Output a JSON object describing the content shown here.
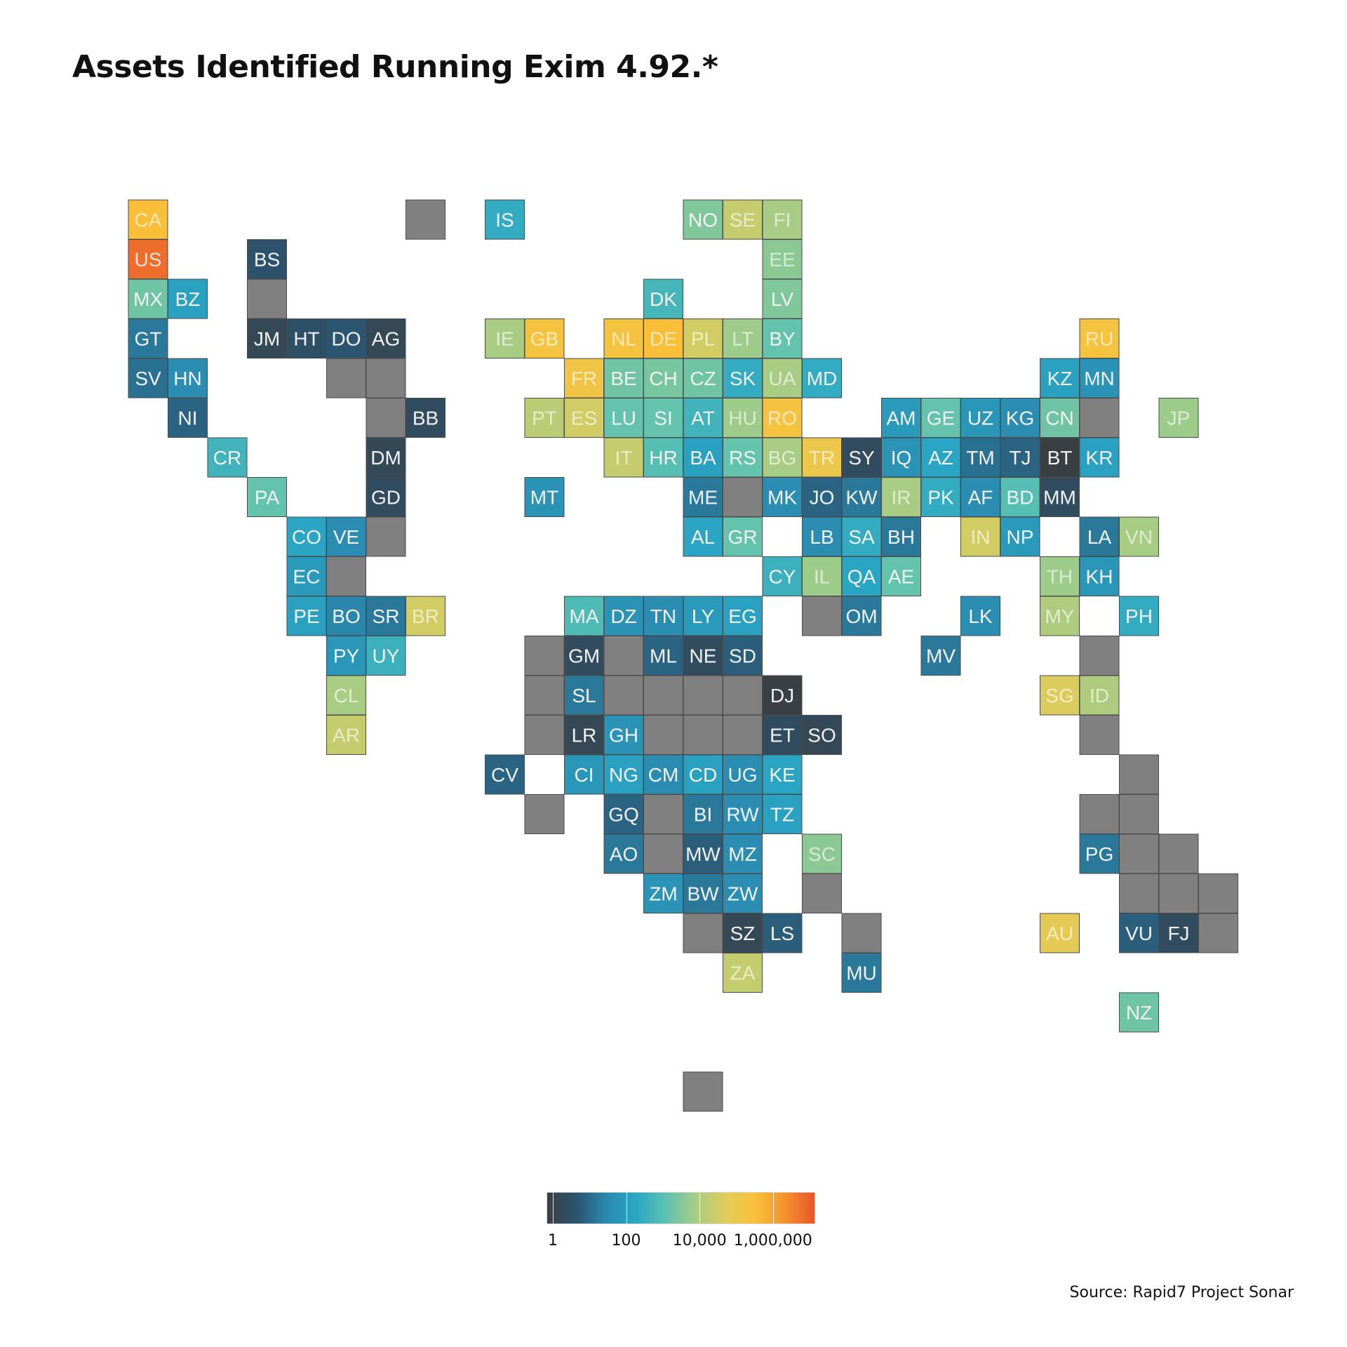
{
  "title": "Assets Identified Running Exim 4.92.*",
  "source": "Source: Rapid7 Project Sonar",
  "colors": {
    "no_data": "#808080",
    "tile_stroke": "#4a4a4a",
    "scale": [
      "#3a3f44",
      "#2b5570",
      "#2a8bb0",
      "#2aa6c4",
      "#5dc2b0",
      "#a7cc84",
      "#e0cc5a",
      "#f9c13a",
      "#f5922e",
      "#e8552a"
    ]
  },
  "legend": {
    "scale": "log10",
    "min": 1,
    "max": 10000000,
    "ticks": [
      {
        "value": 1,
        "label": "1"
      },
      {
        "value": 100,
        "label": "100"
      },
      {
        "value": 10000,
        "label": "10,000"
      },
      {
        "value": 1000000,
        "label": "1,000,000"
      }
    ]
  },
  "tiles": [
    {
      "code": "CA",
      "col": 0,
      "row": 0,
      "value": 300000
    },
    {
      "code": "US",
      "col": 0,
      "row": 1,
      "value": 5000000
    },
    {
      "code": "MX",
      "col": 0,
      "row": 2,
      "value": 2000
    },
    {
      "code": "BZ",
      "col": 1,
      "row": 2,
      "value": 150
    },
    {
      "code": "GT",
      "col": 0,
      "row": 3,
      "value": 20
    },
    {
      "code": "SV",
      "col": 0,
      "row": 4,
      "value": 15
    },
    {
      "code": "HN",
      "col": 1,
      "row": 4,
      "value": 40
    },
    {
      "code": "NI",
      "col": 1,
      "row": 5,
      "value": 10
    },
    {
      "code": "CR",
      "col": 2,
      "row": 6,
      "value": 500
    },
    {
      "code": "PA",
      "col": 3,
      "row": 7,
      "value": 1500
    },
    {
      "code": "BS",
      "col": 3,
      "row": 1,
      "value": 5
    },
    {
      "code": "",
      "col": 3,
      "row": 2,
      "value": null
    },
    {
      "code": "JM",
      "col": 3,
      "row": 3,
      "value": 2
    },
    {
      "code": "HT",
      "col": 4,
      "row": 3,
      "value": 4
    },
    {
      "code": "DO",
      "col": 5,
      "row": 3,
      "value": 6
    },
    {
      "code": "AG",
      "col": 6,
      "row": 3,
      "value": 2
    },
    {
      "code": "",
      "col": 5,
      "row": 4,
      "value": null
    },
    {
      "code": "",
      "col": 6,
      "row": 4,
      "value": null
    },
    {
      "code": "",
      "col": 6,
      "row": 5,
      "value": null
    },
    {
      "code": "BB",
      "col": 7,
      "row": 5,
      "value": 3
    },
    {
      "code": "DM",
      "col": 6,
      "row": 6,
      "value": 2
    },
    {
      "code": "GD",
      "col": 6,
      "row": 7,
      "value": 3
    },
    {
      "code": "",
      "col": 7,
      "row": 0,
      "value": null
    },
    {
      "code": "CO",
      "col": 4,
      "row": 8,
      "value": 200
    },
    {
      "code": "VE",
      "col": 5,
      "row": 8,
      "value": 40
    },
    {
      "code": "",
      "col": 6,
      "row": 8,
      "value": null
    },
    {
      "code": "EC",
      "col": 4,
      "row": 9,
      "value": 100
    },
    {
      "code": "",
      "col": 5,
      "row": 9,
      "value": null
    },
    {
      "code": "PE",
      "col": 4,
      "row": 10,
      "value": 150
    },
    {
      "code": "BO",
      "col": 5,
      "row": 10,
      "value": 30
    },
    {
      "code": "SR",
      "col": 6,
      "row": 10,
      "value": 20
    },
    {
      "code": "BR",
      "col": 7,
      "row": 10,
      "value": 30000
    },
    {
      "code": "PY",
      "col": 5,
      "row": 11,
      "value": 80
    },
    {
      "code": "UY",
      "col": 6,
      "row": 11,
      "value": 400
    },
    {
      "code": "CL",
      "col": 5,
      "row": 12,
      "value": 8000
    },
    {
      "code": "AR",
      "col": 5,
      "row": 13,
      "value": 20000
    },
    {
      "code": "IS",
      "col": 9,
      "row": 0,
      "value": 300
    },
    {
      "code": "IE",
      "col": 9,
      "row": 3,
      "value": 8000
    },
    {
      "code": "GB",
      "col": 10,
      "row": 3,
      "value": 200000
    },
    {
      "code": "MT",
      "col": 10,
      "row": 7,
      "value": 60
    },
    {
      "code": "PT",
      "col": 10,
      "row": 5,
      "value": 15000
    },
    {
      "code": "ES",
      "col": 11,
      "row": 5,
      "value": 30000
    },
    {
      "code": "FR",
      "col": 11,
      "row": 4,
      "value": 150000
    },
    {
      "code": "NL",
      "col": 12,
      "row": 3,
      "value": 200000
    },
    {
      "code": "BE",
      "col": 12,
      "row": 4,
      "value": 2000
    },
    {
      "code": "LU",
      "col": 12,
      "row": 5,
      "value": 1500
    },
    {
      "code": "IT",
      "col": 12,
      "row": 6,
      "value": 20000
    },
    {
      "code": "DE",
      "col": 13,
      "row": 3,
      "value": 300000
    },
    {
      "code": "CH",
      "col": 13,
      "row": 4,
      "value": 2500
    },
    {
      "code": "SI",
      "col": 13,
      "row": 5,
      "value": 1500
    },
    {
      "code": "HR",
      "col": 13,
      "row": 6,
      "value": 1000
    },
    {
      "code": "DK",
      "col": 13,
      "row": 2,
      "value": 600
    },
    {
      "code": "PL",
      "col": 14,
      "row": 3,
      "value": 30000
    },
    {
      "code": "CZ",
      "col": 14,
      "row": 4,
      "value": 2000
    },
    {
      "code": "AT",
      "col": 14,
      "row": 5,
      "value": 500
    },
    {
      "code": "BA",
      "col": 14,
      "row": 6,
      "value": 150
    },
    {
      "code": "ME",
      "col": 14,
      "row": 7,
      "value": 20
    },
    {
      "code": "AL",
      "col": 14,
      "row": 8,
      "value": 200
    },
    {
      "code": "NO",
      "col": 14,
      "row": 0,
      "value": 3000
    },
    {
      "code": "SE",
      "col": 15,
      "row": 0,
      "value": 20000
    },
    {
      "code": "LT",
      "col": 15,
      "row": 3,
      "value": 6000
    },
    {
      "code": "SK",
      "col": 15,
      "row": 4,
      "value": 300
    },
    {
      "code": "HU",
      "col": 15,
      "row": 5,
      "value": 6000
    },
    {
      "code": "RS",
      "col": 15,
      "row": 6,
      "value": 1500
    },
    {
      "code": "",
      "col": 15,
      "row": 7,
      "value": null
    },
    {
      "code": "GR",
      "col": 15,
      "row": 8,
      "value": 1500
    },
    {
      "code": "FI",
      "col": 16,
      "row": 0,
      "value": 8000
    },
    {
      "code": "EE",
      "col": 16,
      "row": 1,
      "value": 4000
    },
    {
      "code": "LV",
      "col": 16,
      "row": 2,
      "value": 3000
    },
    {
      "code": "BY",
      "col": 16,
      "row": 3,
      "value": 1500
    },
    {
      "code": "UA",
      "col": 16,
      "row": 4,
      "value": 8000
    },
    {
      "code": "RO",
      "col": 16,
      "row": 5,
      "value": 200000
    },
    {
      "code": "BG",
      "col": 16,
      "row": 6,
      "value": 8000
    },
    {
      "code": "MK",
      "col": 16,
      "row": 7,
      "value": 40
    },
    {
      "code": "CY",
      "col": 16,
      "row": 9,
      "value": 400
    },
    {
      "code": "MD",
      "col": 17,
      "row": 4,
      "value": 300
    },
    {
      "code": "TR",
      "col": 17,
      "row": 6,
      "value": 100000
    },
    {
      "code": "SY",
      "col": 18,
      "row": 6,
      "value": 3
    },
    {
      "code": "JO",
      "col": 17,
      "row": 7,
      "value": 10
    },
    {
      "code": "LB",
      "col": 17,
      "row": 8,
      "value": 40
    },
    {
      "code": "IL",
      "col": 17,
      "row": 9,
      "value": 6000
    },
    {
      "code": "KW",
      "col": 18,
      "row": 7,
      "value": 20
    },
    {
      "code": "SA",
      "col": 18,
      "row": 8,
      "value": 300
    },
    {
      "code": "QA",
      "col": 18,
      "row": 9,
      "value": 200
    },
    {
      "code": "OM",
      "col": 18,
      "row": 10,
      "value": 20
    },
    {
      "code": "",
      "col": 17,
      "row": 10,
      "value": null
    },
    {
      "code": "AM",
      "col": 19,
      "row": 5,
      "value": 100
    },
    {
      "code": "GE",
      "col": 20,
      "row": 5,
      "value": 1500
    },
    {
      "code": "UZ",
      "col": 21,
      "row": 5,
      "value": 80
    },
    {
      "code": "KG",
      "col": 22,
      "row": 5,
      "value": 40
    },
    {
      "code": "CN",
      "col": 23,
      "row": 5,
      "value": 2000
    },
    {
      "code": "",
      "col": 24,
      "row": 5,
      "value": null
    },
    {
      "code": "IQ",
      "col": 19,
      "row": 6,
      "value": 60
    },
    {
      "code": "AZ",
      "col": 20,
      "row": 6,
      "value": 200
    },
    {
      "code": "TM",
      "col": 21,
      "row": 6,
      "value": 15
    },
    {
      "code": "TJ",
      "col": 22,
      "row": 6,
      "value": 10
    },
    {
      "code": "BT",
      "col": 23,
      "row": 6,
      "value": 1
    },
    {
      "code": "KR",
      "col": 24,
      "row": 6,
      "value": 150
    },
    {
      "code": "IR",
      "col": 19,
      "row": 7,
      "value": 8000
    },
    {
      "code": "PK",
      "col": 20,
      "row": 7,
      "value": 300
    },
    {
      "code": "AF",
      "col": 21,
      "row": 7,
      "value": 40
    },
    {
      "code": "BD",
      "col": 22,
      "row": 7,
      "value": 1000
    },
    {
      "code": "MM",
      "col": 23,
      "row": 7,
      "value": 3
    },
    {
      "code": "BH",
      "col": 19,
      "row": 8,
      "value": 20
    },
    {
      "code": "AE",
      "col": 19,
      "row": 9,
      "value": 1500
    },
    {
      "code": "IN",
      "col": 21,
      "row": 8,
      "value": 30000
    },
    {
      "code": "NP",
      "col": 22,
      "row": 8,
      "value": 100
    },
    {
      "code": "LA",
      "col": 24,
      "row": 8,
      "value": 20
    },
    {
      "code": "VN",
      "col": 25,
      "row": 8,
      "value": 8000
    },
    {
      "code": "TH",
      "col": 23,
      "row": 9,
      "value": 6000
    },
    {
      "code": "KH",
      "col": 24,
      "row": 9,
      "value": 80
    },
    {
      "code": "LK",
      "col": 21,
      "row": 10,
      "value": 40
    },
    {
      "code": "MV",
      "col": 20,
      "row": 11,
      "value": 20
    },
    {
      "code": "MY",
      "col": 23,
      "row": 10,
      "value": 10000
    },
    {
      "code": "PH",
      "col": 25,
      "row": 10,
      "value": 300
    },
    {
      "code": "",
      "col": 24,
      "row": 11,
      "value": null
    },
    {
      "code": "SG",
      "col": 23,
      "row": 12,
      "value": 40000
    },
    {
      "code": "ID",
      "col": 24,
      "row": 12,
      "value": 10000
    },
    {
      "code": "",
      "col": 24,
      "row": 13,
      "value": null
    },
    {
      "code": "KZ",
      "col": 23,
      "row": 4,
      "value": 150
    },
    {
      "code": "MN",
      "col": 24,
      "row": 4,
      "value": 60
    },
    {
      "code": "RU",
      "col": 24,
      "row": 3,
      "value": 200000
    },
    {
      "code": "JP",
      "col": 26,
      "row": 5,
      "value": 6000
    },
    {
      "code": "MA",
      "col": 11,
      "row": 10,
      "value": 800
    },
    {
      "code": "DZ",
      "col": 12,
      "row": 10,
      "value": 60
    },
    {
      "code": "TN",
      "col": 13,
      "row": 10,
      "value": 40
    },
    {
      "code": "LY",
      "col": 14,
      "row": 10,
      "value": 100
    },
    {
      "code": "EG",
      "col": 15,
      "row": 10,
      "value": 150
    },
    {
      "code": "",
      "col": 10,
      "row": 11,
      "value": null
    },
    {
      "code": "GM",
      "col": 11,
      "row": 11,
      "value": 3
    },
    {
      "code": "",
      "col": 12,
      "row": 11,
      "value": null
    },
    {
      "code": "ML",
      "col": 13,
      "row": 11,
      "value": 10
    },
    {
      "code": "NE",
      "col": 14,
      "row": 11,
      "value": 3
    },
    {
      "code": "SD",
      "col": 15,
      "row": 11,
      "value": 8
    },
    {
      "code": "",
      "col": 10,
      "row": 12,
      "value": null
    },
    {
      "code": "SL",
      "col": 11,
      "row": 12,
      "value": 20
    },
    {
      "code": "",
      "col": 12,
      "row": 12,
      "value": null
    },
    {
      "code": "",
      "col": 13,
      "row": 12,
      "value": null
    },
    {
      "code": "",
      "col": 14,
      "row": 12,
      "value": null
    },
    {
      "code": "",
      "col": 15,
      "row": 12,
      "value": null
    },
    {
      "code": "DJ",
      "col": 16,
      "row": 12,
      "value": 1
    },
    {
      "code": "",
      "col": 10,
      "row": 13,
      "value": null
    },
    {
      "code": "LR",
      "col": 11,
      "row": 13,
      "value": 2
    },
    {
      "code": "GH",
      "col": 12,
      "row": 13,
      "value": 60
    },
    {
      "code": "",
      "col": 13,
      "row": 13,
      "value": null
    },
    {
      "code": "",
      "col": 14,
      "row": 13,
      "value": null
    },
    {
      "code": "",
      "col": 15,
      "row": 13,
      "value": null
    },
    {
      "code": "ET",
      "col": 16,
      "row": 13,
      "value": 3
    },
    {
      "code": "SO",
      "col": 17,
      "row": 13,
      "value": 2
    },
    {
      "code": "CV",
      "col": 9,
      "row": 14,
      "value": 10
    },
    {
      "code": "CI",
      "col": 11,
      "row": 14,
      "value": 80
    },
    {
      "code": "NG",
      "col": 12,
      "row": 14,
      "value": 150
    },
    {
      "code": "CM",
      "col": 13,
      "row": 14,
      "value": 40
    },
    {
      "code": "CD",
      "col": 14,
      "row": 14,
      "value": 150
    },
    {
      "code": "UG",
      "col": 15,
      "row": 14,
      "value": 40
    },
    {
      "code": "KE",
      "col": 16,
      "row": 14,
      "value": 200
    },
    {
      "code": "",
      "col": 10,
      "row": 15,
      "value": null
    },
    {
      "code": "GQ",
      "col": 12,
      "row": 15,
      "value": 10
    },
    {
      "code": "",
      "col": 13,
      "row": 15,
      "value": null
    },
    {
      "code": "BI",
      "col": 14,
      "row": 15,
      "value": 20
    },
    {
      "code": "RW",
      "col": 15,
      "row": 15,
      "value": 40
    },
    {
      "code": "TZ",
      "col": 16,
      "row": 15,
      "value": 150
    },
    {
      "code": "AO",
      "col": 12,
      "row": 16,
      "value": 20
    },
    {
      "code": "",
      "col": 13,
      "row": 16,
      "value": null
    },
    {
      "code": "MW",
      "col": 14,
      "row": 16,
      "value": 8
    },
    {
      "code": "MZ",
      "col": 15,
      "row": 16,
      "value": 40
    },
    {
      "code": "SC",
      "col": 17,
      "row": 16,
      "value": 4000
    },
    {
      "code": "ZM",
      "col": 13,
      "row": 17,
      "value": 60
    },
    {
      "code": "BW",
      "col": 14,
      "row": 17,
      "value": 20
    },
    {
      "code": "ZW",
      "col": 15,
      "row": 17,
      "value": 40
    },
    {
      "code": "",
      "col": 17,
      "row": 17,
      "value": null
    },
    {
      "code": "",
      "col": 14,
      "row": 18,
      "value": null
    },
    {
      "code": "SZ",
      "col": 15,
      "row": 18,
      "value": 2
    },
    {
      "code": "LS",
      "col": 16,
      "row": 18,
      "value": 8
    },
    {
      "code": "",
      "col": 18,
      "row": 18,
      "value": null
    },
    {
      "code": "ZA",
      "col": 15,
      "row": 19,
      "value": 20000
    },
    {
      "code": "MU",
      "col": 18,
      "row": 19,
      "value": 20
    },
    {
      "code": "",
      "col": 14,
      "row": 22,
      "value": null
    },
    {
      "code": "",
      "col": 25,
      "row": 14,
      "value": null
    },
    {
      "code": "",
      "col": 24,
      "row": 15,
      "value": null
    },
    {
      "code": "",
      "col": 25,
      "row": 15,
      "value": null
    },
    {
      "code": "PG",
      "col": 24,
      "row": 16,
      "value": 20
    },
    {
      "code": "",
      "col": 25,
      "row": 16,
      "value": null
    },
    {
      "code": "",
      "col": 26,
      "row": 16,
      "value": null
    },
    {
      "code": "",
      "col": 25,
      "row": 17,
      "value": null
    },
    {
      "code": "",
      "col": 26,
      "row": 17,
      "value": null
    },
    {
      "code": "",
      "col": 27,
      "row": 17,
      "value": null
    },
    {
      "code": "AU",
      "col": 23,
      "row": 18,
      "value": 60000
    },
    {
      "code": "VU",
      "col": 25,
      "row": 18,
      "value": 8
    },
    {
      "code": "FJ",
      "col": 26,
      "row": 18,
      "value": 3
    },
    {
      "code": "",
      "col": 27,
      "row": 18,
      "value": null
    },
    {
      "code": "NZ",
      "col": 25,
      "row": 20,
      "value": 2000
    }
  ]
}
